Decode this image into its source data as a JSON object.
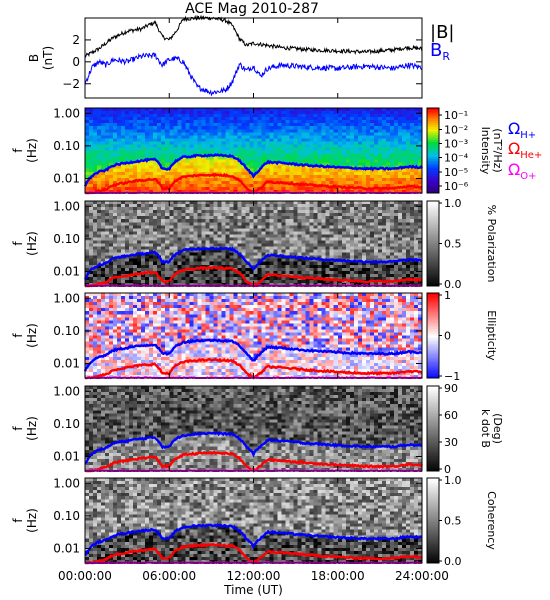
{
  "chart_data": {
    "type": "spectrogram-stack",
    "title": "ACE Mag 2010-287",
    "x_axis": {
      "label": "Time (UT)",
      "range_hours": [
        0,
        24
      ],
      "tick_hours": [
        0,
        6,
        12,
        18,
        24
      ],
      "tick_labels": [
        "00:00:00",
        "06:00:00",
        "12:00:00",
        "18:00:00",
        "24:00:00"
      ]
    },
    "mag_panel": {
      "ylabel": "B (nT)",
      "ylabel_line1": "B",
      "ylabel_line2": "(nT)",
      "ylim": [
        -3.3,
        4.0
      ],
      "yticks": [
        -2,
        0,
        2
      ],
      "ytick_labels": [
        "−2",
        "0",
        "2"
      ],
      "series": [
        {
          "name": "|B|",
          "color": "#000000",
          "x_hours": [
            0,
            1,
            1.5,
            2,
            3,
            4,
            4.6,
            5,
            5.5,
            6,
            6.5,
            7,
            8,
            9,
            10,
            10.5,
            11,
            11.5,
            12,
            13,
            14,
            16,
            18,
            20,
            22,
            23,
            24
          ],
          "y": [
            0.5,
            1.2,
            1.7,
            2.2,
            2.8,
            3.0,
            3.4,
            3.6,
            2.3,
            2.0,
            2.8,
            3.9,
            4.0,
            4.0,
            3.8,
            3.3,
            2.1,
            1.5,
            1.7,
            1.5,
            1.3,
            1.1,
            1.0,
            0.9,
            1.1,
            1.3,
            1.2
          ]
        },
        {
          "name": "B",
          "subscript": "R",
          "color": "#0000ff",
          "x_hours": [
            0,
            0.5,
            1,
            1.5,
            2,
            3,
            4,
            5,
            5.5,
            6,
            6.5,
            7,
            7.5,
            8,
            9,
            10,
            10.5,
            11,
            11.5,
            12,
            12.5,
            13,
            14,
            16,
            18,
            20,
            22,
            23,
            24
          ],
          "y": [
            -2.0,
            -0.5,
            0.0,
            -0.3,
            0.2,
            0.0,
            0.5,
            0.6,
            -0.3,
            0.2,
            0.3,
            0.0,
            -1.2,
            -2.3,
            -2.8,
            -2.6,
            -1.8,
            -0.2,
            -0.8,
            -0.4,
            -1.3,
            -0.6,
            -0.3,
            -0.5,
            -0.6,
            -0.4,
            -0.6,
            -0.3,
            -0.5
          ]
        }
      ]
    },
    "freq_axis": {
      "ylabel": "f (Hz)",
      "ylabel_line1": "f",
      "ylabel_line2": "(Hz)",
      "scale": "log",
      "range_hz": [
        0.0036,
        1.45
      ],
      "ticks_hz": [
        1.0,
        0.1,
        0.01
      ],
      "tick_labels": [
        "1.00",
        "0.10",
        "0.01"
      ]
    },
    "cyclotron_lines": [
      {
        "name": "Ω",
        "subscript": "H+",
        "color": "#0000ff",
        "x_hours": [
          0,
          0.5,
          1,
          1.5,
          2,
          2.5,
          3,
          3.5,
          4,
          4.5,
          5,
          5.5,
          6,
          6.5,
          7,
          8,
          9,
          10,
          10.5,
          11,
          11.5,
          12,
          12.5,
          13,
          14,
          16,
          18,
          20,
          22,
          23,
          24
        ],
        "y_hz": [
          0.006,
          0.012,
          0.016,
          0.018,
          0.025,
          0.028,
          0.03,
          0.033,
          0.035,
          0.037,
          0.038,
          0.02,
          0.02,
          0.035,
          0.045,
          0.05,
          0.052,
          0.05,
          0.048,
          0.035,
          0.02,
          0.012,
          0.02,
          0.032,
          0.03,
          0.025,
          0.022,
          0.02,
          0.02,
          0.023,
          0.022
        ]
      },
      {
        "name": "Ω",
        "subscript": "He+",
        "color": "#ff0000",
        "x_hours": [
          0,
          0.5,
          1,
          1.5,
          2,
          2.5,
          3,
          3.5,
          4,
          4.5,
          5,
          5.5,
          6,
          6.5,
          7,
          8,
          9,
          10,
          10.5,
          11,
          11.5,
          12,
          12.5,
          13,
          14,
          16,
          18,
          20,
          22,
          23,
          24
        ],
        "y_hz": [
          0.0036,
          0.0036,
          0.0042,
          0.0046,
          0.0062,
          0.007,
          0.0075,
          0.0083,
          0.0088,
          0.0093,
          0.0095,
          0.005,
          0.005,
          0.0088,
          0.0112,
          0.0125,
          0.013,
          0.0125,
          0.012,
          0.0088,
          0.005,
          0.0036,
          0.005,
          0.008,
          0.0075,
          0.0063,
          0.0055,
          0.005,
          0.005,
          0.0058,
          0.0055
        ]
      },
      {
        "name": "Ω",
        "subscript": "O+",
        "color": "#ff00ff",
        "x_hours": [
          0,
          1,
          2,
          3,
          4,
          5,
          6,
          7,
          8,
          9,
          10,
          11,
          12,
          13,
          14,
          16,
          18,
          20,
          22,
          24
        ],
        "y_hz": [
          0.0036,
          0.0036,
          0.0036,
          0.0036,
          0.0036,
          0.0036,
          0.0036,
          0.0036,
          0.0036,
          0.0036,
          0.0036,
          0.0036,
          0.0036,
          0.0036,
          0.0036,
          0.0036,
          0.0036,
          0.0036,
          0.0036,
          0.0036
        ]
      }
    ],
    "spectrogram_panels": [
      {
        "id": "intensity",
        "colormap": "rainbow",
        "colorbar_label_line1": "Intensity",
        "colorbar_label_line2": "(nT²/Hz)",
        "colorbar_tick_labels": [
          "10⁻¹",
          "10⁻²",
          "10⁻³",
          "10⁻⁴",
          "10⁻⁵",
          "10⁻⁶"
        ],
        "colorbar_log_range": [
          -6.5,
          -0.5
        ]
      },
      {
        "id": "polarization",
        "colormap": "gray",
        "colorbar_label_line1": "% Polarization",
        "colorbar_label_line2": "",
        "colorbar_tick_labels": [
          "1.0",
          "0.5",
          "0.0"
        ],
        "colorbar_range": [
          0.0,
          1.0
        ]
      },
      {
        "id": "ellipticity",
        "colormap": "blue-white-red",
        "colorbar_label_line1": "Ellipticity",
        "colorbar_label_line2": "",
        "colorbar_tick_labels": [
          "1",
          "0",
          "−1"
        ],
        "colorbar_range": [
          -1,
          1
        ]
      },
      {
        "id": "kdotb",
        "colormap": "gray",
        "colorbar_label_line1": "k dot B",
        "colorbar_label_line2": "(Deg)",
        "colorbar_tick_labels": [
          "90",
          "60",
          "30",
          "0"
        ],
        "colorbar_range": [
          0,
          90
        ]
      },
      {
        "id": "coherency",
        "colormap": "gray",
        "colorbar_label_line1": "Coherency",
        "colorbar_label_line2": "",
        "colorbar_tick_labels": [
          "1.0",
          "0.5",
          "0.0"
        ],
        "colorbar_range": [
          0.0,
          1.0
        ]
      }
    ]
  }
}
